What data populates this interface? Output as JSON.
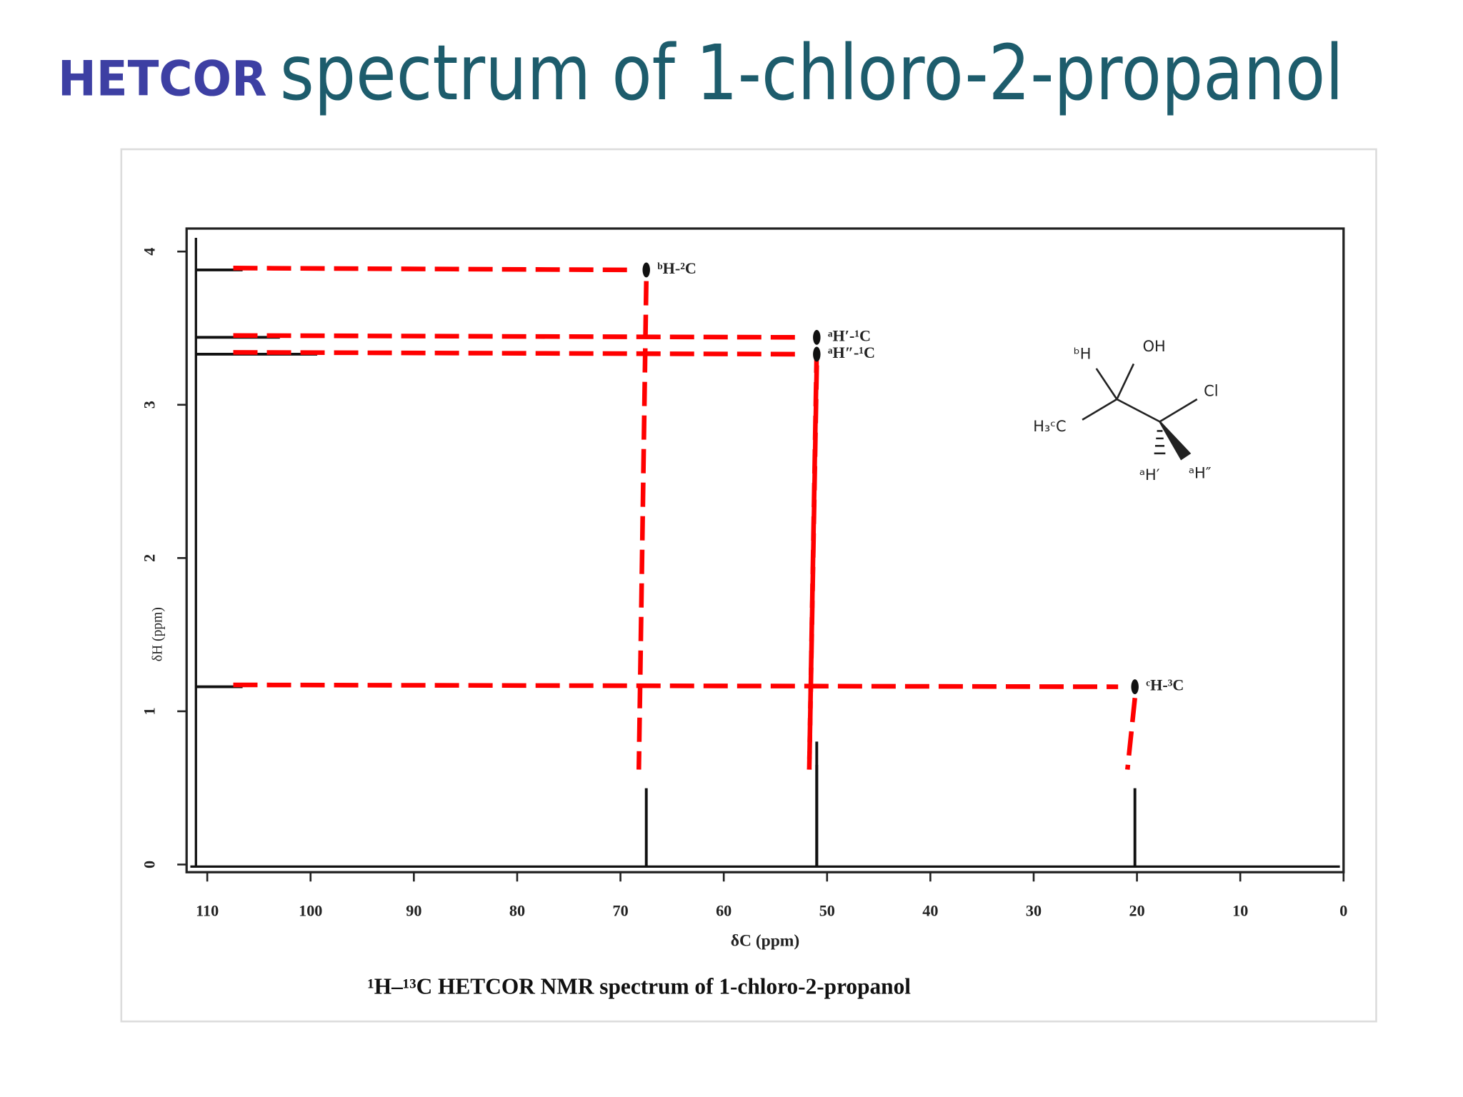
{
  "header": {
    "title_lead": "HETCOR",
    "title_rest": "spectrum of 1-chloro-2-propanol"
  },
  "chart_data": {
    "type": "scatter",
    "x": [
      67.5,
      51,
      51,
      20.2
    ],
    "values": [
      3.88,
      3.44,
      3.33,
      1.16
    ],
    "point_labels": [
      "ᵇH-²C",
      "ᵃH′-¹C",
      "ᵃH″-¹C",
      "ᶜH-³C"
    ],
    "color": "#111111",
    "guide_color": "#ff0000",
    "xlim": [
      112,
      0
    ],
    "xticks": [
      110,
      100,
      90,
      80,
      70,
      60,
      50,
      40,
      30,
      20,
      10,
      0
    ],
    "ylim": [
      -0.05,
      4.15
    ],
    "yticks": [
      0,
      1,
      2,
      3,
      4
    ],
    "xlabel": "δC (ppm)",
    "ylabel": "δH (ppm)",
    "caption": "¹H–¹³C HETCOR NMR spectrum of 1-chloro-2-propanol"
  },
  "molecule": {
    "labels": [
      "ᵇH",
      "OH",
      "Cl",
      "H₃ᶜC",
      "ᵃH′",
      "ᵃH″"
    ]
  }
}
